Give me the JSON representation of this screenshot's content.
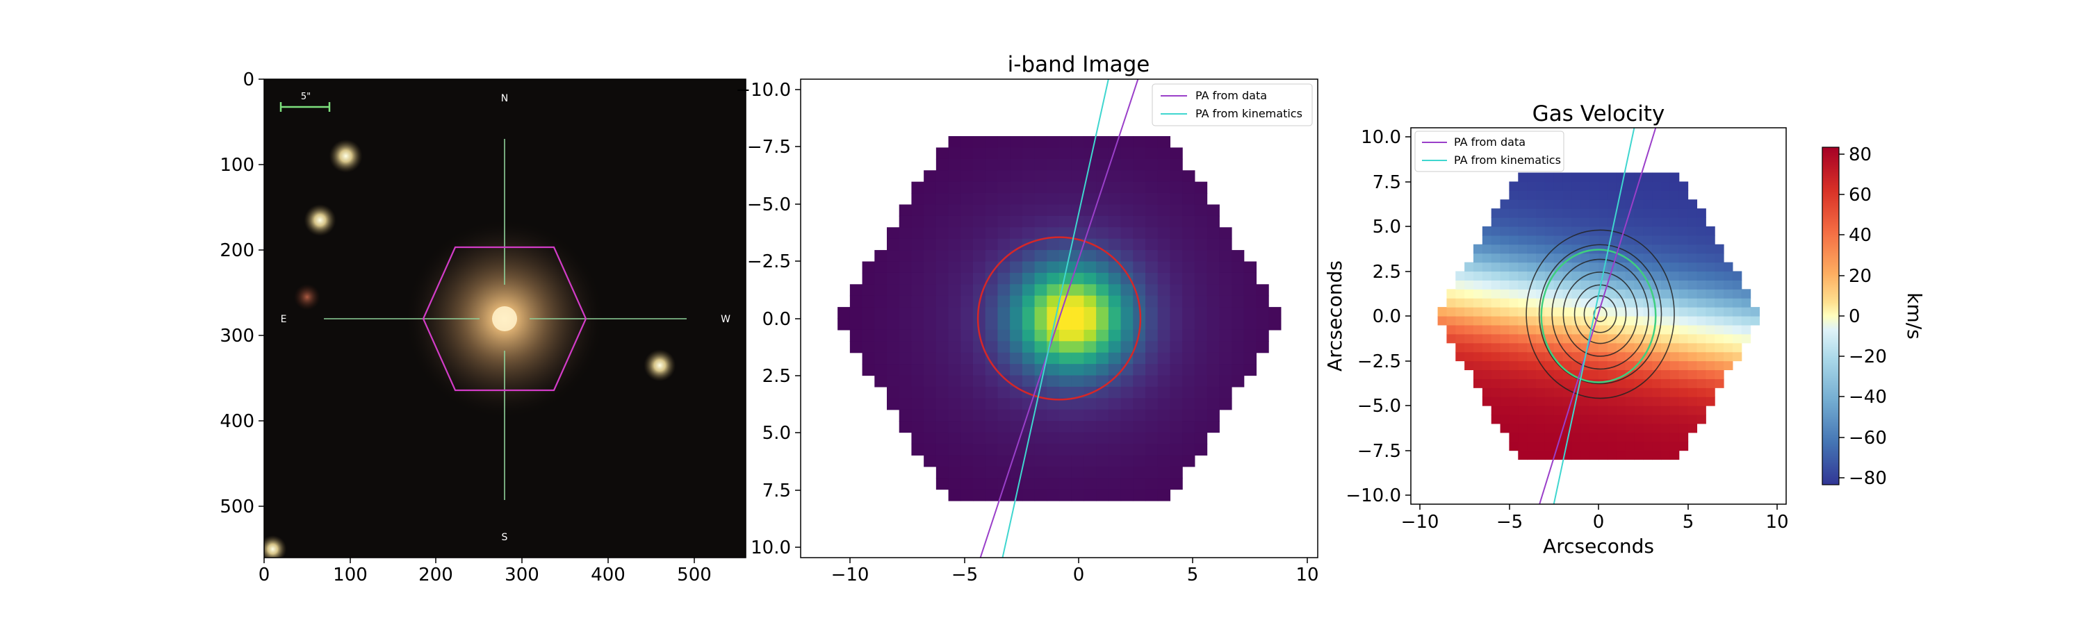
{
  "panels": {
    "image": {
      "x_ticks": [
        "0",
        "100",
        "200",
        "300",
        "400",
        "500"
      ],
      "y_ticks": [
        "0",
        "100",
        "200",
        "300",
        "400",
        "500"
      ],
      "scale_label": "5\"",
      "compass": {
        "n": "N",
        "s": "S",
        "e": "E",
        "w": "W"
      },
      "xlim": [
        0,
        560
      ],
      "ylim": [
        0,
        560
      ]
    },
    "iband": {
      "title": "i-band Image",
      "x_ticks": [
        "−10",
        "−5",
        "0",
        "5",
        "10"
      ],
      "y_ticks": [
        "−10.0",
        "−7.5",
        "−5.0",
        "−2.5",
        "0.0",
        "2.5",
        "5.0",
        "7.5",
        "10.0"
      ],
      "legend": [
        "PA from data",
        "PA from kinematics"
      ]
    },
    "gas": {
      "title": "Gas Velocity",
      "xlabel": "Arcseconds",
      "ylabel": "Arcseconds",
      "x_ticks": [
        "−10",
        "−5",
        "0",
        "5",
        "10"
      ],
      "y_ticks": [
        "10.0",
        "7.5",
        "5.0",
        "2.5",
        "0.0",
        "−2.5",
        "−5.0",
        "−7.5",
        "−10.0"
      ],
      "legend": [
        "PA from data",
        "PA from kinematics"
      ],
      "colorbar_label": "km/s",
      "colorbar_ticks": [
        "80",
        "60",
        "40",
        "20",
        "0",
        "−20",
        "−40",
        "−60",
        "−80"
      ]
    }
  },
  "colors": {
    "pa_data": "#9a3fc9",
    "pa_kinematics": "#3fd6cf",
    "circle": "#d62728",
    "hexagon": "#d23cc7",
    "crosshair": "#8fd19a",
    "scalebar": "#7ee07e",
    "contours": "#222222",
    "green_ellipse": "#3fcf7f"
  },
  "chart_data": [
    {
      "type": "image",
      "xlim": [
        0,
        560
      ],
      "ylim": [
        560,
        0
      ],
      "galaxy_center": [
        280,
        280
      ],
      "hexagon_center": [
        280,
        280
      ],
      "hexagon_radius": 95,
      "stars": [
        {
          "x": 95,
          "y": 90,
          "brightness": 1.0
        },
        {
          "x": 65,
          "y": 165,
          "brightness": 0.9
        },
        {
          "x": 460,
          "y": 335,
          "brightness": 0.9
        },
        {
          "x": 50,
          "y": 255,
          "brightness": 0.5
        },
        {
          "x": 10,
          "y": 550,
          "brightness": 0.6
        }
      ]
    },
    {
      "type": "heatmap",
      "title": "i-band Image",
      "xlim": [
        -10.5,
        10.5
      ],
      "ylim": [
        -10.5,
        10.5
      ],
      "y_inverted": true,
      "pixel_size": 0.5,
      "aperture_circle": {
        "center": [
          0,
          0
        ],
        "radius": 3.3
      },
      "pa_lines": [
        {
          "name": "PA from data",
          "points": [
            [
              -3.2,
              10.5
            ],
            [
              3.2,
              -10.5
            ]
          ]
        },
        {
          "name": "PA from kinematics",
          "points": [
            [
              -2.3,
              10.5
            ],
            [
              2.0,
              -10.5
            ]
          ]
        }
      ],
      "peak": [
        0.5,
        0.0
      ]
    },
    {
      "type": "heatmap",
      "title": "Gas Velocity",
      "xlabel": "Arcseconds",
      "ylabel": "Arcseconds",
      "xlim": [
        -10.5,
        10.5
      ],
      "ylim": [
        -10.5,
        10.5
      ],
      "colorbar": {
        "label": "km/s",
        "range": [
          -80,
          80
        ]
      },
      "velocity_gradient_deg": 80,
      "pa_lines": [
        {
          "name": "PA from data",
          "points": [
            [
              -3.3,
              -10.5
            ],
            [
              3.2,
              10.5
            ]
          ]
        },
        {
          "name": "PA from kinematics",
          "points": [
            [
              -2.5,
              -10.5
            ],
            [
              2.0,
              10.5
            ]
          ]
        }
      ],
      "contour_radii": [
        0.4,
        1.0,
        1.6,
        2.3,
        3.0,
        3.8,
        4.6
      ],
      "ellipse": {
        "center": [
          0,
          0
        ],
        "rx": 3.2,
        "ry": 3.7
      }
    }
  ]
}
